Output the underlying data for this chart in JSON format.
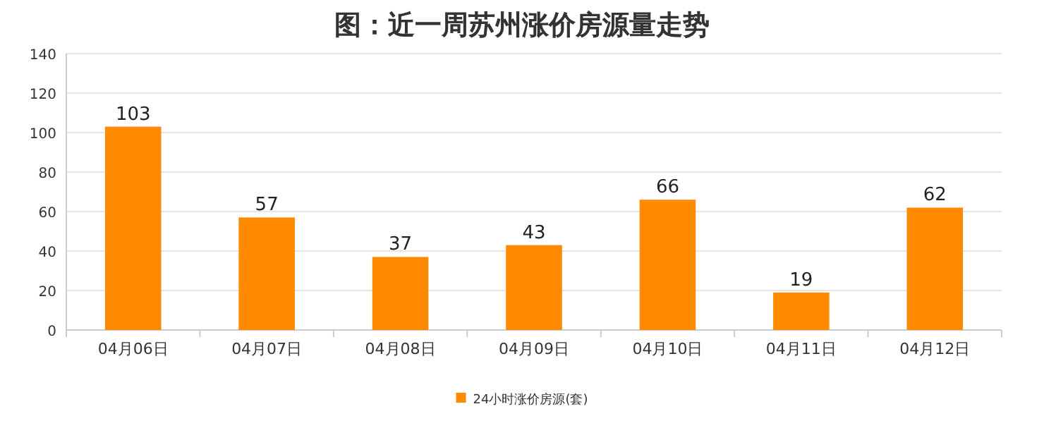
{
  "chart_data": {
    "type": "bar",
    "title": "图：近一周苏州涨价房源量走势",
    "categories": [
      "04月06日",
      "04月07日",
      "04月08日",
      "04月09日",
      "04月10日",
      "04月11日",
      "04月12日"
    ],
    "series": [
      {
        "name": "24小时涨价房源(套)",
        "color": "#ff8a00",
        "values": [
          103,
          57,
          37,
          43,
          66,
          19,
          62
        ]
      }
    ],
    "ylim": [
      0,
      140
    ],
    "yticks": [
      0,
      20,
      40,
      60,
      80,
      100,
      120,
      140
    ],
    "grid": "y",
    "legend": "bottom",
    "data_labels": true
  }
}
